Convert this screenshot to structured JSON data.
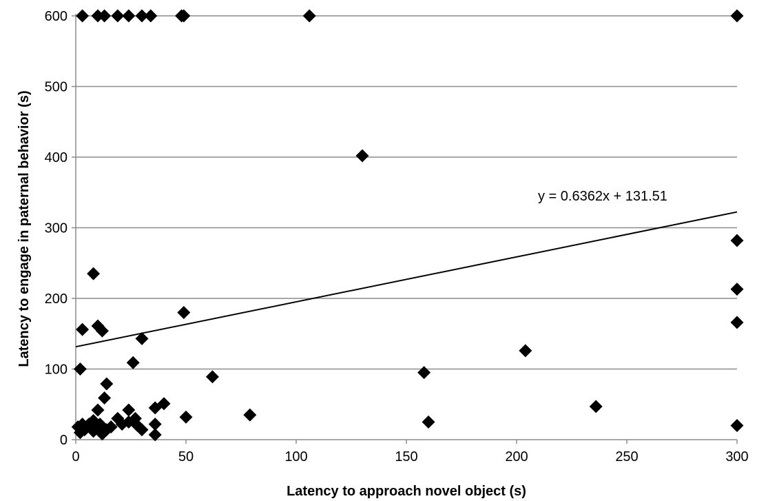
{
  "chart_data": {
    "type": "scatter",
    "title": "",
    "xlabel": "Latency to approach novel object (s)",
    "ylabel": "Latency to engage in paternal behavior (s)",
    "xlim": [
      0,
      300
    ],
    "ylim": [
      0,
      600
    ],
    "xticks": [
      0,
      50,
      100,
      150,
      200,
      250,
      300
    ],
    "yticks": [
      0,
      100,
      200,
      300,
      400,
      500,
      600
    ],
    "grid": "horizontal",
    "legend": "none",
    "marker": "diamond",
    "marker_color": "#000000",
    "points": [
      [
        3,
        600
      ],
      [
        10,
        600
      ],
      [
        13,
        600
      ],
      [
        19,
        600
      ],
      [
        24,
        600
      ],
      [
        30,
        600
      ],
      [
        34,
        600
      ],
      [
        48,
        600
      ],
      [
        49,
        600
      ],
      [
        106,
        600
      ],
      [
        300,
        600
      ],
      [
        130,
        402
      ],
      [
        300,
        282
      ],
      [
        300,
        213
      ],
      [
        300,
        166
      ],
      [
        300,
        20
      ],
      [
        8,
        235
      ],
      [
        3,
        156
      ],
      [
        10,
        161
      ],
      [
        12,
        154
      ],
      [
        49,
        180
      ],
      [
        30,
        143
      ],
      [
        26,
        109
      ],
      [
        2,
        100
      ],
      [
        62,
        89
      ],
      [
        158,
        95
      ],
      [
        204,
        126
      ],
      [
        14,
        79
      ],
      [
        13,
        59
      ],
      [
        40,
        51
      ],
      [
        36,
        45
      ],
      [
        24,
        42
      ],
      [
        10,
        42
      ],
      [
        50,
        32
      ],
      [
        79,
        35
      ],
      [
        160,
        25
      ],
      [
        236,
        47
      ],
      [
        1,
        18
      ],
      [
        3,
        22
      ],
      [
        4,
        14
      ],
      [
        6,
        22
      ],
      [
        8,
        27
      ],
      [
        8,
        12
      ],
      [
        10,
        16
      ],
      [
        11,
        22
      ],
      [
        12,
        8
      ],
      [
        14,
        14
      ],
      [
        16,
        18
      ],
      [
        19,
        30
      ],
      [
        21,
        22
      ],
      [
        24,
        25
      ],
      [
        27,
        30
      ],
      [
        28,
        20
      ],
      [
        30,
        14
      ],
      [
        36,
        22
      ],
      [
        36,
        7
      ],
      [
        2,
        10
      ]
    ],
    "trendline": {
      "slope": 0.6362,
      "intercept": 131.51,
      "x_range": [
        0,
        300
      ],
      "label": "y = 0.6362x + 131.51"
    }
  }
}
